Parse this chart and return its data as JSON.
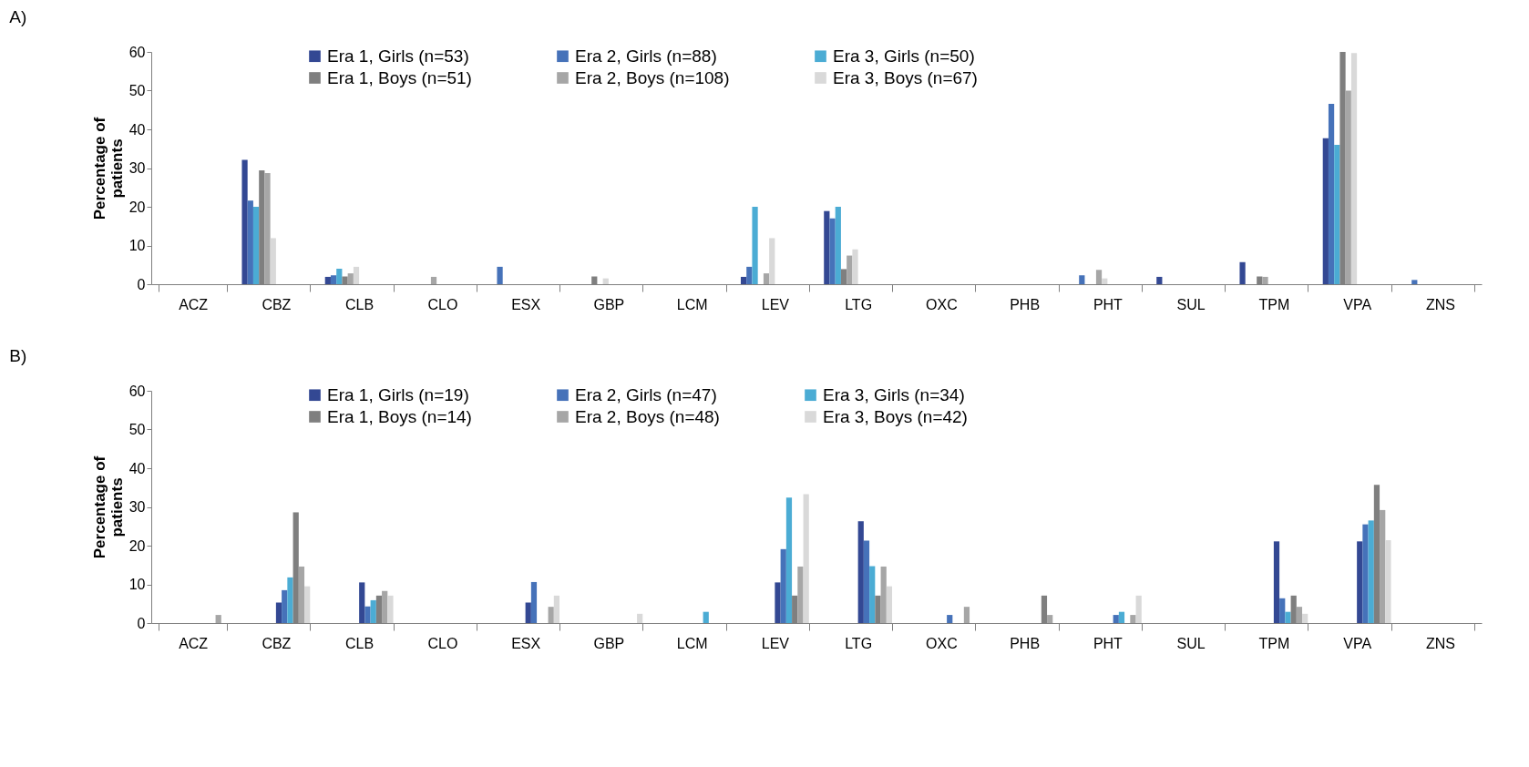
{
  "chart_data": [
    {
      "type": "bar",
      "title": "A)",
      "ylabel": "Percentage of patients",
      "categories": [
        "ACZ",
        "CBZ",
        "CLB",
        "CLO",
        "ESX",
        "GBP",
        "LCM",
        "LEV",
        "LTG",
        "OXC",
        "PHB",
        "PHT",
        "SUL",
        "TPM",
        "VPA",
        "ZNS"
      ],
      "series": [
        {
          "name": "Era 1, Girls (n=53)",
          "color": "#334893",
          "values": [
            0,
            32.1,
            1.9,
            0,
            0,
            0,
            0,
            1.9,
            18.9,
            0,
            0,
            0,
            1.9,
            5.7,
            37.7,
            0
          ]
        },
        {
          "name": "Era 2, Girls (n=88)",
          "color": "#4672b9",
          "values": [
            0,
            21.6,
            2.3,
            0,
            4.5,
            0,
            0,
            4.5,
            17,
            0,
            0,
            2.3,
            0,
            0,
            46.6,
            1.1
          ]
        },
        {
          "name": "Era 3, Girls (n=50)",
          "color": "#4bacd4",
          "values": [
            0,
            20,
            4,
            0,
            0,
            0,
            0,
            20,
            20,
            0,
            0,
            0,
            0,
            0,
            36,
            0
          ]
        },
        {
          "name": "Era 1, Boys (n=51)",
          "color": "#7f7f7f",
          "values": [
            0,
            29.4,
            2,
            0,
            0,
            2,
            0,
            0,
            3.9,
            0,
            0,
            0,
            0,
            2,
            60,
            0
          ]
        },
        {
          "name": "Era 2, Boys (n=108)",
          "color": "#a6a6a6",
          "values": [
            0,
            28.7,
            2.8,
            1.9,
            0,
            0,
            0,
            2.8,
            7.4,
            0,
            0,
            3.7,
            0,
            1.9,
            50,
            0
          ]
        },
        {
          "name": "Era 3, Boys (n=67)",
          "color": "#d9d9d9",
          "values": [
            0,
            11.9,
            4.5,
            0,
            0,
            1.5,
            0,
            11.9,
            9,
            0,
            0,
            1.5,
            0,
            0,
            59.7,
            0
          ]
        }
      ],
      "ylim": [
        0,
        60
      ],
      "yticks": [
        0,
        10,
        20,
        30,
        40,
        50,
        60
      ],
      "grid": false,
      "legend": "top"
    },
    {
      "type": "bar",
      "title": "B)",
      "ylabel": "Percentage of patients",
      "categories": [
        "ACZ",
        "CBZ",
        "CLB",
        "CLO",
        "ESX",
        "GBP",
        "LCM",
        "LEV",
        "LTG",
        "OXC",
        "PHB",
        "PHT",
        "SUL",
        "TPM",
        "VPA",
        "ZNS"
      ],
      "series": [
        {
          "name": "Era 1, Girls (n=19)",
          "color": "#334893",
          "values": [
            0,
            5.3,
            10.5,
            0,
            5.3,
            0,
            0,
            10.5,
            26.3,
            0,
            0,
            0,
            0,
            21.1,
            21.1,
            0
          ]
        },
        {
          "name": "Era 2, Girls (n=47)",
          "color": "#4672b9",
          "values": [
            0,
            8.5,
            4.3,
            0,
            10.6,
            0,
            0,
            19.1,
            21.3,
            2.1,
            0,
            2.1,
            0,
            6.4,
            25.5,
            0
          ]
        },
        {
          "name": "Era 3, Girls (n=34)",
          "color": "#4bacd4",
          "values": [
            0,
            11.8,
            5.9,
            0,
            0,
            0,
            2.9,
            32.4,
            14.7,
            0,
            0,
            2.9,
            0,
            2.9,
            26.5,
            0
          ]
        },
        {
          "name": "Era 1, Boys (n=14)",
          "color": "#7f7f7f",
          "values": [
            0,
            28.6,
            7.1,
            0,
            0,
            0,
            0,
            7.1,
            7.1,
            0,
            7.1,
            0,
            0,
            7.1,
            35.7,
            0
          ]
        },
        {
          "name": "Era 2, Boys (n=48)",
          "color": "#a6a6a6",
          "values": [
            2.1,
            14.6,
            8.3,
            0,
            4.2,
            0,
            0,
            14.6,
            14.6,
            4.2,
            2.1,
            2.1,
            0,
            4.2,
            29.2,
            0
          ]
        },
        {
          "name": "Era 3, Boys (n=42)",
          "color": "#d9d9d9",
          "values": [
            0,
            9.5,
            7.1,
            0,
            7.1,
            2.4,
            0,
            33.3,
            9.5,
            0,
            0,
            7.1,
            0,
            2.4,
            21.4,
            0
          ]
        }
      ],
      "ylim": [
        0,
        60
      ],
      "yticks": [
        0,
        10,
        20,
        30,
        40,
        50,
        60
      ],
      "grid": false,
      "legend": "top"
    }
  ]
}
